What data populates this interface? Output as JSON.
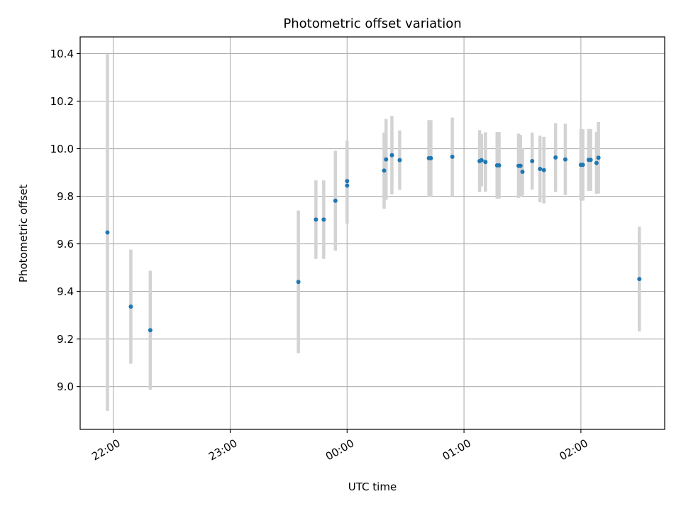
{
  "chart_data": {
    "type": "scatter",
    "title": "Photometric offset variation",
    "xlabel": "UTC time",
    "ylabel": "Photometric offset",
    "x_unit": "UTC",
    "xlim": [
      "21:43",
      "02:43"
    ],
    "ylim": [
      8.82,
      10.47
    ],
    "x_ticks": [
      {
        "value": "22:00",
        "label": "22:00"
      },
      {
        "value": "23:00",
        "label": "23:00"
      },
      {
        "value": "00:00",
        "label": "00:00"
      },
      {
        "value": "01:00",
        "label": "01:00"
      },
      {
        "value": "02:00",
        "label": "02:00"
      }
    ],
    "y_ticks": [
      {
        "value": 9.0,
        "label": "9.0"
      },
      {
        "value": 9.2,
        "label": "9.2"
      },
      {
        "value": 9.4,
        "label": "9.4"
      },
      {
        "value": 9.6,
        "label": "9.6"
      },
      {
        "value": 9.8,
        "label": "9.8"
      },
      {
        "value": 10.0,
        "label": "10.0"
      },
      {
        "value": 10.2,
        "label": "10.2"
      },
      {
        "value": 10.4,
        "label": "10.4"
      }
    ],
    "grid": true,
    "legend": "none",
    "point_color": "#1f77b4",
    "errorbar_color": "#d3d3d3",
    "points": [
      {
        "x": "21:57",
        "y": 9.648,
        "yerr": 0.75
      },
      {
        "x": "22:09",
        "y": 9.336,
        "yerr": 0.24
      },
      {
        "x": "22:19",
        "y": 9.237,
        "yerr": 0.25
      },
      {
        "x": "23:35",
        "y": 9.44,
        "yerr": 0.3
      },
      {
        "x": "23:44",
        "y": 9.702,
        "yerr": 0.165
      },
      {
        "x": "23:48",
        "y": 9.702,
        "yerr": 0.165
      },
      {
        "x": "23:54",
        "y": 9.781,
        "yerr": 0.21
      },
      {
        "x": "00:00",
        "y": 9.864,
        "yerr": 0.17
      },
      {
        "x": "00:00",
        "y": 9.845,
        "yerr": 0.16
      },
      {
        "x": "00:19",
        "y": 9.908,
        "yerr": 0.16
      },
      {
        "x": "00:20",
        "y": 9.955,
        "yerr": 0.17
      },
      {
        "x": "00:23",
        "y": 9.973,
        "yerr": 0.165
      },
      {
        "x": "00:27",
        "y": 9.952,
        "yerr": 0.125
      },
      {
        "x": "00:42",
        "y": 9.96,
        "yerr": 0.16
      },
      {
        "x": "00:43",
        "y": 9.96,
        "yerr": 0.16
      },
      {
        "x": "00:54",
        "y": 9.966,
        "yerr": 0.165
      },
      {
        "x": "01:08",
        "y": 9.948,
        "yerr": 0.13
      },
      {
        "x": "01:09",
        "y": 9.952,
        "yerr": 0.11
      },
      {
        "x": "01:11",
        "y": 9.944,
        "yerr": 0.125
      },
      {
        "x": "01:17",
        "y": 9.93,
        "yerr": 0.14
      },
      {
        "x": "01:18",
        "y": 9.93,
        "yerr": 0.14
      },
      {
        "x": "01:28",
        "y": 9.928,
        "yerr": 0.135
      },
      {
        "x": "01:29",
        "y": 9.928,
        "yerr": 0.13
      },
      {
        "x": "01:30",
        "y": 9.903,
        "yerr": 0.1
      },
      {
        "x": "01:35",
        "y": 9.948,
        "yerr": 0.12
      },
      {
        "x": "01:39",
        "y": 9.915,
        "yerr": 0.14
      },
      {
        "x": "01:41",
        "y": 9.91,
        "yerr": 0.14
      },
      {
        "x": "01:47",
        "y": 9.963,
        "yerr": 0.145
      },
      {
        "x": "01:52",
        "y": 9.955,
        "yerr": 0.15
      },
      {
        "x": "02:00",
        "y": 9.932,
        "yerr": 0.15
      },
      {
        "x": "02:01",
        "y": 9.932,
        "yerr": 0.15
      },
      {
        "x": "02:04",
        "y": 9.953,
        "yerr": 0.13
      },
      {
        "x": "02:05",
        "y": 9.953,
        "yerr": 0.13
      },
      {
        "x": "02:08",
        "y": 9.94,
        "yerr": 0.13
      },
      {
        "x": "02:09",
        "y": 9.962,
        "yerr": 0.15
      },
      {
        "x": "02:30",
        "y": 9.452,
        "yerr": 0.22
      }
    ]
  }
}
